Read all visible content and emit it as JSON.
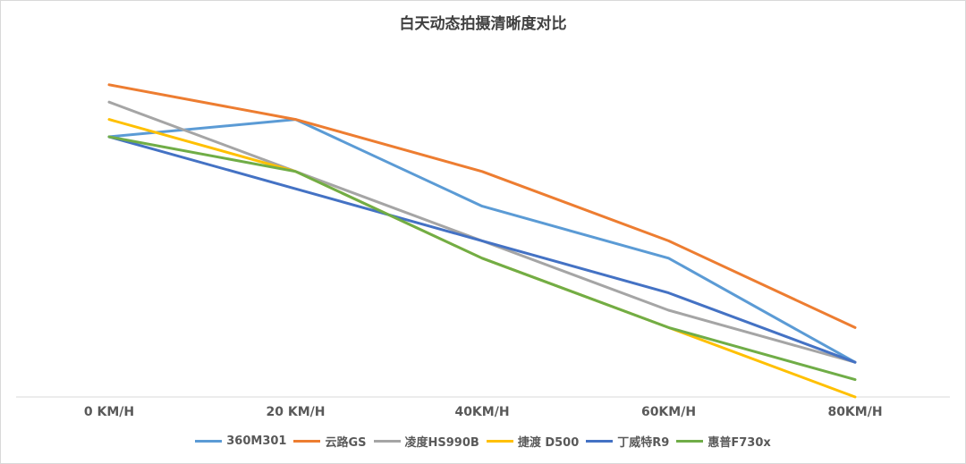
{
  "chart_data": {
    "type": "line",
    "title": "白天动态拍摄清晰度对比",
    "xlabel": "",
    "ylabel": "",
    "categories": [
      "0 KM/H",
      "20 KM/H",
      "40KM/H",
      "60KM/H",
      "80KM/H"
    ],
    "ylim": [
      0,
      100
    ],
    "grid": false,
    "y_axis_visible": false,
    "legend": "bottom",
    "series": [
      {
        "name": "360M301",
        "color": "#5B9BD5",
        "values": [
          75,
          80,
          55,
          40,
          10
        ]
      },
      {
        "name": "云路GS",
        "color": "#ED7D31",
        "values": [
          90,
          80,
          65,
          45,
          20
        ]
      },
      {
        "name": "凌度HS990B",
        "color": "#A5A5A5",
        "values": [
          85,
          65,
          45,
          25,
          10
        ]
      },
      {
        "name": "捷渡 D500",
        "color": "#FFC000",
        "values": [
          80,
          65,
          40,
          20,
          0
        ]
      },
      {
        "name": "丁威特R9",
        "color": "#4472C4",
        "values": [
          75,
          60,
          45,
          30,
          10
        ]
      },
      {
        "name": "惠普F730x",
        "color": "#70AD47",
        "values": [
          75,
          65,
          40,
          20,
          5
        ]
      }
    ]
  }
}
